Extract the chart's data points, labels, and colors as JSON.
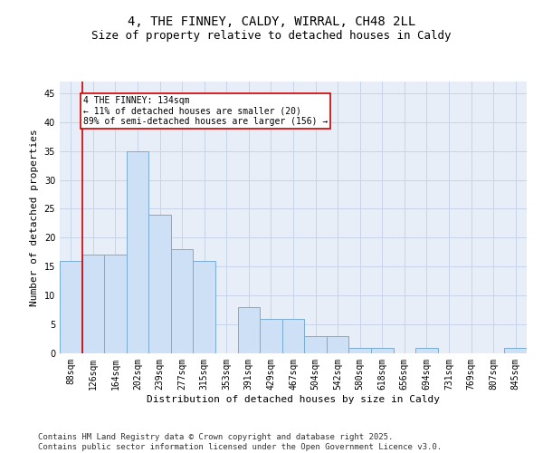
{
  "title": "4, THE FINNEY, CALDY, WIRRAL, CH48 2LL",
  "subtitle": "Size of property relative to detached houses in Caldy",
  "xlabel": "Distribution of detached houses by size in Caldy",
  "ylabel": "Number of detached properties",
  "categories": [
    "88sqm",
    "126sqm",
    "164sqm",
    "202sqm",
    "239sqm",
    "277sqm",
    "315sqm",
    "353sqm",
    "391sqm",
    "429sqm",
    "467sqm",
    "504sqm",
    "542sqm",
    "580sqm",
    "618sqm",
    "656sqm",
    "694sqm",
    "731sqm",
    "769sqm",
    "807sqm",
    "845sqm"
  ],
  "values": [
    16,
    17,
    17,
    35,
    24,
    18,
    16,
    0,
    8,
    6,
    6,
    3,
    3,
    1,
    1,
    0,
    1,
    0,
    0,
    0,
    1
  ],
  "bar_color": "#cde0f5",
  "bar_edge_color": "#7aadd4",
  "subject_line_color": "#cc0000",
  "annotation_box_color": "#ffffff",
  "annotation_box_edge_color": "#cc0000",
  "subject_label": "4 THE FINNEY: 134sqm",
  "annotation_line1": "← 11% of detached houses are smaller (20)",
  "annotation_line2": "89% of semi-detached houses are larger (156) →",
  "ylim": [
    0,
    47
  ],
  "yticks": [
    0,
    5,
    10,
    15,
    20,
    25,
    30,
    35,
    40,
    45
  ],
  "grid_color": "#c8d4e8",
  "background_color": "#e8eef8",
  "footer": "Contains HM Land Registry data © Crown copyright and database right 2025.\nContains public sector information licensed under the Open Government Licence v3.0.",
  "title_fontsize": 10,
  "subtitle_fontsize": 9,
  "axis_label_fontsize": 8,
  "tick_fontsize": 7,
  "annotation_fontsize": 7,
  "footer_fontsize": 6.5
}
